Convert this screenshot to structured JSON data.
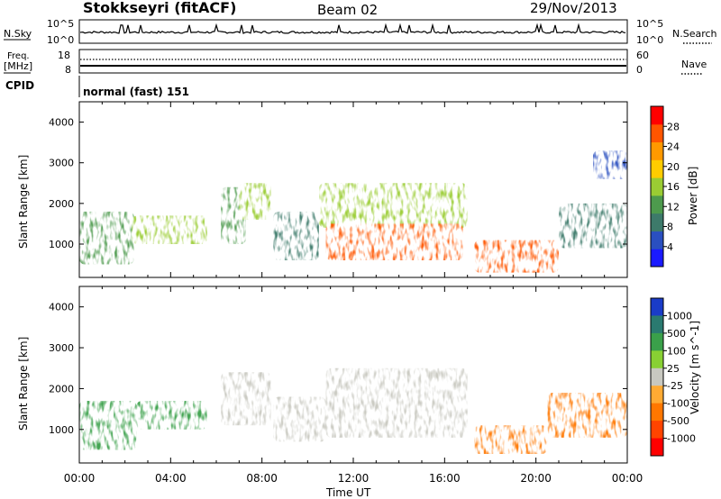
{
  "header": {
    "station": "Stokkseyri (fitACF)",
    "beam": "Beam 02",
    "date": "29/Nov/2013"
  },
  "top_panels": {
    "nsky_label": "N.Sky",
    "nsky_ticks": [
      "10^5",
      "10^0"
    ],
    "nsearch_label": "N.Search",
    "nsearch_ticks": [
      "10^5",
      "10^0"
    ],
    "freq_label_1": "Freq.",
    "freq_label_2": "[MHz]",
    "freq_ticks": [
      "18",
      "8"
    ],
    "nave_label": "Nave",
    "nave_ticks": [
      "60",
      "0"
    ],
    "cpid_label": "CPID",
    "cpid_text": "normal (fast) 151"
  },
  "chart_data": [
    {
      "type": "heatmap",
      "name": "power",
      "ylabel": "Slant Range [km]",
      "xlabel": "",
      "ylim": [
        180,
        4500
      ],
      "xlim_hours": [
        0,
        24
      ],
      "yticks": [
        "4000",
        "3000",
        "2000",
        "1000"
      ],
      "colorbar_label": "Power [dB]",
      "colorbar_ticks": [
        "28",
        "24",
        "20",
        "16",
        "12",
        "8",
        "4"
      ],
      "colorbar_colors": [
        "#1a1aff",
        "#2a4fc0",
        "#3d7a6a",
        "#4d9a4d",
        "#9acc33",
        "#ffcc00",
        "#ff9900",
        "#ff5500",
        "#ff0000"
      ],
      "regions": [
        {
          "t0": 0.0,
          "t1": 2.4,
          "r0": 500,
          "r1": 1800,
          "value": 10
        },
        {
          "t0": 2.3,
          "t1": 5.6,
          "r0": 1000,
          "r1": 1700,
          "value": 14
        },
        {
          "t0": 6.2,
          "t1": 7.3,
          "r0": 1000,
          "r1": 2400,
          "value": 12
        },
        {
          "t0": 7.0,
          "t1": 8.4,
          "r0": 1600,
          "r1": 2500,
          "value": 14
        },
        {
          "t0": 8.5,
          "t1": 10.5,
          "r0": 600,
          "r1": 1800,
          "value": 8
        },
        {
          "t0": 10.5,
          "t1": 17.0,
          "r0": 1400,
          "r1": 2500,
          "value": 16
        },
        {
          "t0": 10.8,
          "t1": 16.8,
          "r0": 600,
          "r1": 1500,
          "value": 26
        },
        {
          "t0": 17.3,
          "t1": 21.0,
          "r0": 300,
          "r1": 1100,
          "value": 28
        },
        {
          "t0": 21.0,
          "t1": 24.0,
          "r0": 900,
          "r1": 2000,
          "value": 6
        },
        {
          "t0": 22.5,
          "t1": 24.0,
          "r0": 2600,
          "r1": 3300,
          "value": 4
        }
      ]
    },
    {
      "type": "heatmap",
      "name": "velocity",
      "ylabel": "Slant Range [km]",
      "xlabel": "Time UT",
      "ylim": [
        180,
        4500
      ],
      "xlim_hours": [
        0,
        24
      ],
      "yticks": [
        "4000",
        "3000",
        "2000",
        "1000"
      ],
      "xticks": [
        "00:00",
        "04:00",
        "08:00",
        "12:00",
        "16:00",
        "20:00",
        "00:00"
      ],
      "colorbar_label": "Velocity [m s^-1]",
      "colorbar_ticks": [
        "1000",
        "500",
        "100",
        "25",
        "-25",
        "-100",
        "-500",
        "-1000"
      ],
      "colorbar_colors": [
        "#1a3cc8",
        "#2a7a70",
        "#3aa04a",
        "#88d033",
        "#c8c8c0",
        "#ffaa33",
        "#ff7700",
        "#ff4400",
        "#ff0000"
      ],
      "regions": [
        {
          "t0": 0.0,
          "t1": 2.5,
          "r0": 500,
          "r1": 1700,
          "value": 300
        },
        {
          "t0": 2.5,
          "t1": 5.6,
          "r0": 1000,
          "r1": 1700,
          "value": 150
        },
        {
          "t0": 6.2,
          "t1": 8.4,
          "r0": 1100,
          "r1": 2400,
          "value": 0
        },
        {
          "t0": 8.5,
          "t1": 10.8,
          "r0": 700,
          "r1": 1800,
          "value": 0
        },
        {
          "t0": 10.8,
          "t1": 17.0,
          "r0": 800,
          "r1": 2500,
          "value": 0
        },
        {
          "t0": 17.3,
          "t1": 20.5,
          "r0": 400,
          "r1": 1100,
          "value": -300
        },
        {
          "t0": 20.5,
          "t1": 24.0,
          "r0": 800,
          "r1": 1900,
          "value": -150
        }
      ]
    }
  ]
}
